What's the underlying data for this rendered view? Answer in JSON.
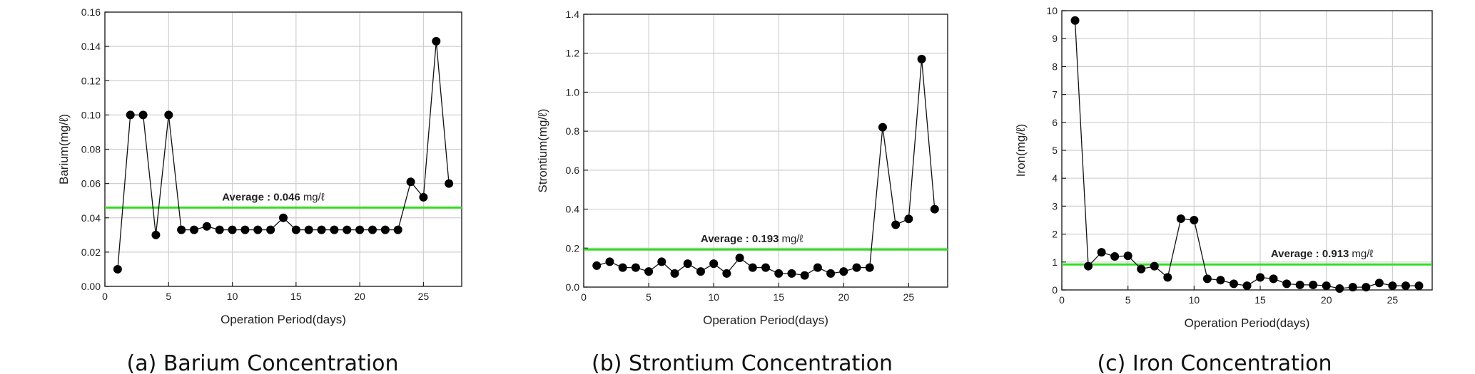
{
  "chart_data": [
    {
      "type": "line",
      "caption": "(a) Barium Concentration",
      "xlabel": "Operation Period(days)",
      "ylabel": "Barium(mg/ℓ)",
      "xlim": [
        0,
        28
      ],
      "ylim": [
        0,
        0.16
      ],
      "xticks": [
        0,
        5,
        10,
        15,
        20,
        25
      ],
      "yticks": [
        0,
        0.02,
        0.04,
        0.06,
        0.08,
        0.1,
        0.12,
        0.14,
        0.16
      ],
      "ytick_labels": [
        "0.00",
        "0.02",
        "0.04",
        "0.06",
        "0.08",
        "0.10",
        "0.12",
        "0.14",
        "0.16"
      ],
      "grid": true,
      "series": [
        {
          "x": [
            1,
            2,
            3,
            4,
            5,
            6,
            7,
            8,
            9,
            10,
            11,
            12,
            13,
            14,
            15,
            16,
            17,
            18,
            19,
            20,
            21,
            22,
            23,
            24,
            25,
            26,
            27
          ],
          "values": [
            0.01,
            0.1,
            0.1,
            0.03,
            0.1,
            0.033,
            0.033,
            0.035,
            0.033,
            0.033,
            0.033,
            0.033,
            0.033,
            0.04,
            0.033,
            0.033,
            0.033,
            0.033,
            0.033,
            0.033,
            0.033,
            0.033,
            0.033,
            0.061,
            0.052,
            0.143,
            0.06
          ]
        }
      ],
      "average": {
        "value": 0.046,
        "prefix": "Average : ",
        "number": "0.046",
        "unit": "mg/ℓ",
        "color": "#33dd22",
        "label_x": 9.2
      }
    },
    {
      "type": "line",
      "caption": "(b) Strontium Concentration",
      "xlabel": "Operation Period(days)",
      "ylabel": "Strontium(mg/ℓ)",
      "xlim": [
        0,
        28
      ],
      "ylim": [
        0,
        1.4
      ],
      "xticks": [
        0,
        5,
        10,
        15,
        20,
        25
      ],
      "yticks": [
        0,
        0.2,
        0.4,
        0.6,
        0.8,
        1.0,
        1.2,
        1.4
      ],
      "ytick_labels": [
        "0.0",
        "0.2",
        "0.4",
        "0.6",
        "0.8",
        "1.0",
        "1.2",
        "1.4"
      ],
      "grid": true,
      "series": [
        {
          "x": [
            1,
            2,
            3,
            4,
            5,
            6,
            7,
            8,
            9,
            10,
            11,
            12,
            13,
            14,
            15,
            16,
            17,
            18,
            19,
            20,
            21,
            22,
            23,
            24,
            25,
            26,
            27
          ],
          "values": [
            0.11,
            0.13,
            0.1,
            0.1,
            0.08,
            0.13,
            0.07,
            0.12,
            0.08,
            0.12,
            0.07,
            0.15,
            0.1,
            0.1,
            0.07,
            0.07,
            0.06,
            0.1,
            0.07,
            0.08,
            0.1,
            0.1,
            0.82,
            0.32,
            0.35,
            1.17,
            0.4
          ]
        }
      ],
      "average": {
        "value": 0.193,
        "prefix": "Average : ",
        "number": "0.193",
        "unit": "mg/ℓ",
        "color": "#33dd22",
        "label_x": 9.0
      }
    },
    {
      "type": "line",
      "caption": "(c) Iron Concentration",
      "xlabel": "Operation Period(days)",
      "ylabel": "Iron(mg/ℓ)",
      "xlim": [
        0,
        28
      ],
      "ylim": [
        0,
        10
      ],
      "xticks": [
        0,
        5,
        10,
        15,
        20,
        25
      ],
      "yticks": [
        0,
        1,
        2,
        3,
        4,
        5,
        6,
        7,
        8,
        9,
        10
      ],
      "ytick_labels": [
        "0",
        "1",
        "2",
        "3",
        "4",
        "5",
        "6",
        "7",
        "8",
        "9",
        "10"
      ],
      "grid": true,
      "series": [
        {
          "x": [
            1,
            2,
            3,
            4,
            5,
            6,
            7,
            8,
            9,
            10,
            11,
            12,
            13,
            14,
            15,
            16,
            17,
            18,
            19,
            20,
            21,
            22,
            23,
            24,
            25,
            26,
            27
          ],
          "values": [
            9.65,
            0.85,
            1.35,
            1.2,
            1.22,
            0.75,
            0.85,
            0.45,
            2.55,
            2.5,
            0.4,
            0.35,
            0.22,
            0.15,
            0.45,
            0.4,
            0.22,
            0.18,
            0.18,
            0.15,
            0.05,
            0.1,
            0.1,
            0.25,
            0.15,
            0.15,
            0.15
          ]
        }
      ],
      "average": {
        "value": 0.913,
        "prefix": "Average : ",
        "number": "0.913",
        "unit": "mg/ℓ",
        "color": "#33dd22",
        "label_x": 15.8
      }
    }
  ]
}
